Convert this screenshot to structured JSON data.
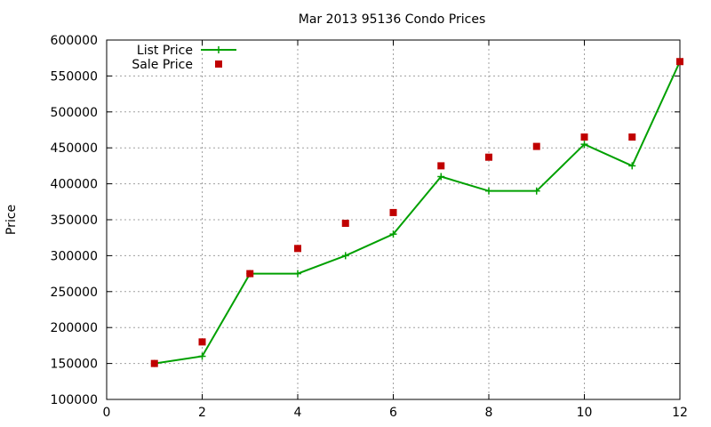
{
  "chart_data": {
    "type": "line",
    "title": "Mar 2013 95136 Condo Prices",
    "xlabel": "",
    "ylabel": "Price",
    "xlim": [
      0,
      12
    ],
    "ylim": [
      100000,
      600000
    ],
    "x_ticks": [
      0,
      2,
      4,
      6,
      8,
      10,
      12
    ],
    "y_ticks": [
      100000,
      150000,
      200000,
      250000,
      300000,
      350000,
      400000,
      450000,
      500000,
      550000,
      600000
    ],
    "grid": true,
    "legend_position": "top-left",
    "series": [
      {
        "name": "List Price",
        "style": "line-with-plus-markers",
        "color": "#00a000",
        "x": [
          1,
          2,
          3,
          4,
          5,
          6,
          7,
          8,
          9,
          10,
          11,
          12
        ],
        "values": [
          150000,
          160000,
          275000,
          275000,
          300000,
          330000,
          410000,
          390000,
          390000,
          455000,
          425000,
          570000
        ]
      },
      {
        "name": "Sale Price",
        "style": "square-markers",
        "color": "#c00000",
        "x": [
          1,
          2,
          3,
          4,
          5,
          6,
          7,
          8,
          9,
          10,
          11,
          12
        ],
        "values": [
          150000,
          180000,
          275000,
          310000,
          345000,
          360000,
          425000,
          437000,
          452000,
          465000,
          465000,
          570000
        ]
      }
    ]
  }
}
